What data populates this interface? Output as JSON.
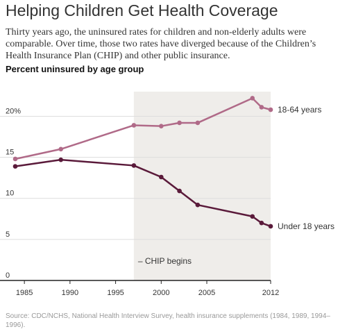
{
  "header": {
    "title": "Helping Children Get Health Coverage",
    "subtitle": "Thirty years ago, the uninsured rates for children and non-elderly adults were comparable. Over time, those two rates have diverged because of the Children’s Health Insurance Plan (CHIP) and other public insurance.",
    "chart_label": "Percent uninsured by age group"
  },
  "footer": {
    "source": "Source: CDC/NCHS, National Health Interview Survey, health insurance supplements (1984, 1989, 1994–1996)."
  },
  "colors": {
    "adults": "#b06a88",
    "children": "#5a1a3a",
    "shade": "#efedea",
    "grid": "#dddddd",
    "axis": "#222222",
    "text": "#333333"
  },
  "chart_data": {
    "type": "line",
    "title": "Percent uninsured by age group",
    "xlabel": "",
    "ylabel": "",
    "xlim": [
      1984,
      2012
    ],
    "ylim": [
      0,
      23
    ],
    "x_ticks": [
      {
        "value": 1985,
        "label": "1985"
      },
      {
        "value": 1990,
        "label": "1990"
      },
      {
        "value": 1995,
        "label": "1995"
      },
      {
        "value": 2000,
        "label": "2000"
      },
      {
        "value": 2005,
        "label": "2005"
      },
      {
        "value": 2012,
        "label": "2012"
      }
    ],
    "y_ticks": [
      {
        "value": 0,
        "label": "0"
      },
      {
        "value": 5,
        "label": "5"
      },
      {
        "value": 10,
        "label": "10"
      },
      {
        "value": 15,
        "label": "15"
      },
      {
        "value": 20,
        "label": "20%"
      }
    ],
    "grid": true,
    "shaded_region": {
      "x_start": 1997,
      "x_end": 2012,
      "label": "– CHIP begins"
    },
    "series": [
      {
        "name": "18-64 years",
        "color": "#b06a88",
        "points": [
          [
            1984,
            14.8
          ],
          [
            1989,
            16.0
          ],
          [
            1997,
            18.9
          ],
          [
            2000,
            18.8
          ],
          [
            2002,
            19.2
          ],
          [
            2004,
            19.2
          ],
          [
            2010,
            22.2
          ],
          [
            2011,
            21.1
          ],
          [
            2012,
            20.8
          ]
        ]
      },
      {
        "name": "Under 18 years",
        "color": "#5a1a3a",
        "points": [
          [
            1984,
            13.9
          ],
          [
            1989,
            14.7
          ],
          [
            1997,
            14.0
          ],
          [
            2000,
            12.6
          ],
          [
            2002,
            10.9
          ],
          [
            2004,
            9.2
          ],
          [
            2010,
            7.8
          ],
          [
            2011,
            7.0
          ],
          [
            2012,
            6.6
          ]
        ]
      }
    ]
  }
}
